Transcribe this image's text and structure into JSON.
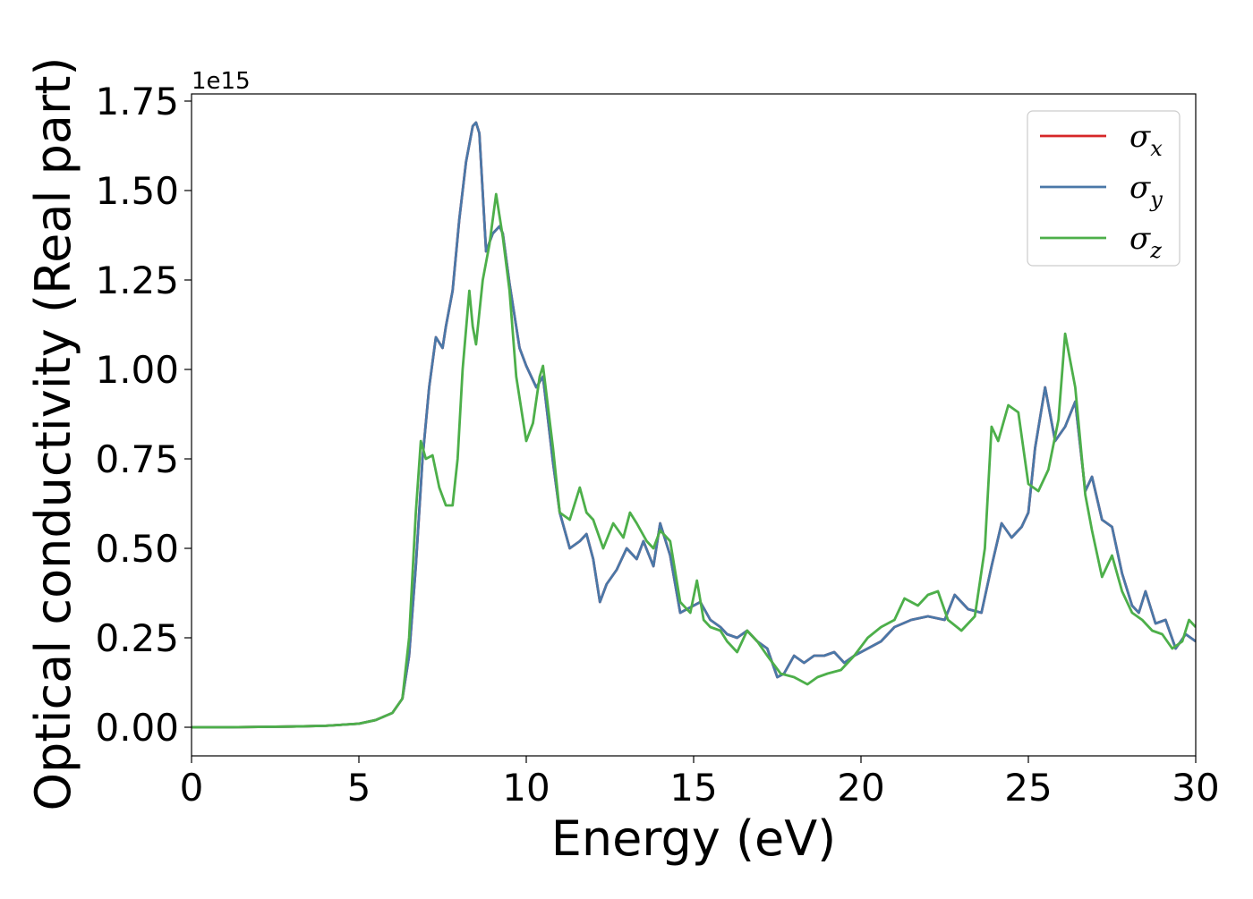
{
  "chart_data": {
    "type": "line",
    "xlabel": "Energy (eV)",
    "ylabel": "Optical conductivity (Real part)",
    "y_offset_text": "1e15",
    "xlim": [
      0,
      30
    ],
    "ylim": [
      -0.08,
      1.77
    ],
    "x_ticks": [
      0,
      5,
      10,
      15,
      20,
      25,
      30
    ],
    "x_tick_labels": [
      "0",
      "5",
      "10",
      "15",
      "20",
      "25",
      "30"
    ],
    "y_ticks": [
      0,
      0.25,
      0.5,
      0.75,
      1.0,
      1.25,
      1.5,
      1.75
    ],
    "y_tick_labels": [
      "0.00",
      "0.25",
      "0.50",
      "0.75",
      "1.00",
      "1.25",
      "1.50",
      "1.75"
    ],
    "grid": false,
    "legend_position": "top-right",
    "series": [
      {
        "name": "σx",
        "legend_base": "σ",
        "legend_sub": "x",
        "color": "#d62728",
        "x": [
          0,
          1,
          2,
          3,
          4,
          5,
          5.5,
          6,
          6.3,
          6.5,
          6.7,
          6.9,
          7.1,
          7.3,
          7.5,
          7.6,
          7.8,
          8.0,
          8.2,
          8.4,
          8.5,
          8.6,
          8.8,
          9.0,
          9.2,
          9.3,
          9.5,
          9.8,
          10.0,
          10.3,
          10.5,
          10.8,
          11.0,
          11.3,
          11.6,
          11.8,
          12.0,
          12.2,
          12.4,
          12.7,
          13.0,
          13.3,
          13.5,
          13.8,
          14.0,
          14.3,
          14.6,
          14.8,
          15.2,
          15.5,
          15.8,
          16.0,
          16.3,
          16.6,
          16.9,
          17.2,
          17.5,
          17.7,
          18.0,
          18.3,
          18.6,
          18.9,
          19.2,
          19.5,
          19.8,
          20.2,
          20.6,
          21.0,
          21.5,
          22.0,
          22.5,
          22.8,
          23.2,
          23.6,
          23.9,
          24.2,
          24.5,
          24.8,
          25.0,
          25.2,
          25.5,
          25.8,
          26.1,
          26.4,
          26.7,
          26.9,
          27.2,
          27.5,
          27.8,
          28.1,
          28.3,
          28.5,
          28.8,
          29.1,
          29.4,
          29.7,
          30.0
        ],
        "y": [
          0,
          0,
          0.001,
          0.002,
          0.004,
          0.01,
          0.02,
          0.04,
          0.08,
          0.2,
          0.45,
          0.75,
          0.95,
          1.09,
          1.06,
          1.12,
          1.22,
          1.42,
          1.58,
          1.68,
          1.69,
          1.66,
          1.33,
          1.38,
          1.4,
          1.38,
          1.24,
          1.06,
          1.01,
          0.95,
          0.98,
          0.74,
          0.6,
          0.5,
          0.52,
          0.54,
          0.47,
          0.35,
          0.4,
          0.44,
          0.5,
          0.47,
          0.52,
          0.45,
          0.57,
          0.48,
          0.32,
          0.33,
          0.35,
          0.3,
          0.28,
          0.26,
          0.25,
          0.27,
          0.24,
          0.22,
          0.14,
          0.15,
          0.2,
          0.18,
          0.2,
          0.2,
          0.21,
          0.18,
          0.2,
          0.22,
          0.24,
          0.28,
          0.3,
          0.31,
          0.3,
          0.37,
          0.33,
          0.32,
          0.45,
          0.57,
          0.53,
          0.56,
          0.6,
          0.78,
          0.95,
          0.8,
          0.84,
          0.91,
          0.66,
          0.7,
          0.58,
          0.56,
          0.43,
          0.34,
          0.32,
          0.38,
          0.29,
          0.3,
          0.22,
          0.26,
          0.24
        ]
      },
      {
        "name": "σy",
        "legend_base": "σ",
        "legend_sub": "y",
        "color": "#4a78a8",
        "x": [
          0,
          1,
          2,
          3,
          4,
          5,
          5.5,
          6,
          6.3,
          6.5,
          6.7,
          6.9,
          7.1,
          7.3,
          7.5,
          7.6,
          7.8,
          8.0,
          8.2,
          8.4,
          8.5,
          8.6,
          8.8,
          9.0,
          9.2,
          9.3,
          9.5,
          9.8,
          10.0,
          10.3,
          10.5,
          10.8,
          11.0,
          11.3,
          11.6,
          11.8,
          12.0,
          12.2,
          12.4,
          12.7,
          13.0,
          13.3,
          13.5,
          13.8,
          14.0,
          14.3,
          14.6,
          14.8,
          15.2,
          15.5,
          15.8,
          16.0,
          16.3,
          16.6,
          16.9,
          17.2,
          17.5,
          17.7,
          18.0,
          18.3,
          18.6,
          18.9,
          19.2,
          19.5,
          19.8,
          20.2,
          20.6,
          21.0,
          21.5,
          22.0,
          22.5,
          22.8,
          23.2,
          23.6,
          23.9,
          24.2,
          24.5,
          24.8,
          25.0,
          25.2,
          25.5,
          25.8,
          26.1,
          26.4,
          26.7,
          26.9,
          27.2,
          27.5,
          27.8,
          28.1,
          28.3,
          28.5,
          28.8,
          29.1,
          29.4,
          29.7,
          30.0
        ],
        "y": [
          0,
          0,
          0.001,
          0.002,
          0.004,
          0.01,
          0.02,
          0.04,
          0.08,
          0.2,
          0.45,
          0.75,
          0.95,
          1.09,
          1.06,
          1.12,
          1.22,
          1.42,
          1.58,
          1.68,
          1.69,
          1.66,
          1.33,
          1.38,
          1.4,
          1.38,
          1.24,
          1.06,
          1.01,
          0.95,
          0.98,
          0.74,
          0.6,
          0.5,
          0.52,
          0.54,
          0.47,
          0.35,
          0.4,
          0.44,
          0.5,
          0.47,
          0.52,
          0.45,
          0.57,
          0.48,
          0.32,
          0.33,
          0.35,
          0.3,
          0.28,
          0.26,
          0.25,
          0.27,
          0.24,
          0.22,
          0.14,
          0.15,
          0.2,
          0.18,
          0.2,
          0.2,
          0.21,
          0.18,
          0.2,
          0.22,
          0.24,
          0.28,
          0.3,
          0.31,
          0.3,
          0.37,
          0.33,
          0.32,
          0.45,
          0.57,
          0.53,
          0.56,
          0.6,
          0.78,
          0.95,
          0.8,
          0.84,
          0.91,
          0.66,
          0.7,
          0.58,
          0.56,
          0.43,
          0.34,
          0.32,
          0.38,
          0.29,
          0.3,
          0.22,
          0.26,
          0.24
        ]
      },
      {
        "name": "σz",
        "legend_base": "σ",
        "legend_sub": "z",
        "color": "#4daf4a",
        "x": [
          0,
          1,
          2,
          3,
          4,
          5,
          5.5,
          6,
          6.3,
          6.5,
          6.7,
          6.85,
          7.0,
          7.2,
          7.4,
          7.6,
          7.8,
          7.95,
          8.1,
          8.3,
          8.4,
          8.5,
          8.7,
          8.9,
          9.1,
          9.3,
          9.5,
          9.7,
          10.0,
          10.2,
          10.4,
          10.5,
          10.8,
          11.0,
          11.3,
          11.6,
          11.8,
          12.0,
          12.3,
          12.6,
          12.9,
          13.1,
          13.3,
          13.6,
          13.8,
          14.0,
          14.3,
          14.6,
          14.9,
          15.1,
          15.3,
          15.5,
          15.8,
          16.0,
          16.3,
          16.6,
          16.9,
          17.2,
          17.6,
          18.0,
          18.4,
          18.7,
          19.0,
          19.4,
          19.8,
          20.2,
          20.6,
          21.0,
          21.3,
          21.7,
          22.0,
          22.3,
          22.6,
          23.0,
          23.4,
          23.7,
          23.9,
          24.1,
          24.4,
          24.7,
          25.0,
          25.3,
          25.6,
          25.9,
          26.1,
          26.4,
          26.7,
          26.9,
          27.2,
          27.5,
          27.8,
          28.1,
          28.4,
          28.7,
          29.0,
          29.3,
          29.6,
          29.8,
          30.0
        ],
        "y": [
          0,
          0,
          0.001,
          0.002,
          0.004,
          0.01,
          0.02,
          0.04,
          0.08,
          0.25,
          0.6,
          0.8,
          0.75,
          0.76,
          0.67,
          0.62,
          0.62,
          0.75,
          1.0,
          1.22,
          1.12,
          1.07,
          1.25,
          1.35,
          1.49,
          1.37,
          1.22,
          0.98,
          0.8,
          0.85,
          0.98,
          1.01,
          0.78,
          0.6,
          0.58,
          0.67,
          0.6,
          0.58,
          0.5,
          0.57,
          0.53,
          0.6,
          0.57,
          0.52,
          0.5,
          0.55,
          0.52,
          0.35,
          0.32,
          0.41,
          0.3,
          0.28,
          0.27,
          0.24,
          0.21,
          0.27,
          0.24,
          0.2,
          0.15,
          0.14,
          0.12,
          0.14,
          0.15,
          0.16,
          0.2,
          0.25,
          0.28,
          0.3,
          0.36,
          0.34,
          0.37,
          0.38,
          0.3,
          0.27,
          0.31,
          0.5,
          0.84,
          0.8,
          0.9,
          0.88,
          0.68,
          0.66,
          0.72,
          0.86,
          1.1,
          0.95,
          0.65,
          0.55,
          0.42,
          0.48,
          0.38,
          0.32,
          0.3,
          0.27,
          0.26,
          0.22,
          0.24,
          0.3,
          0.28
        ]
      }
    ]
  }
}
